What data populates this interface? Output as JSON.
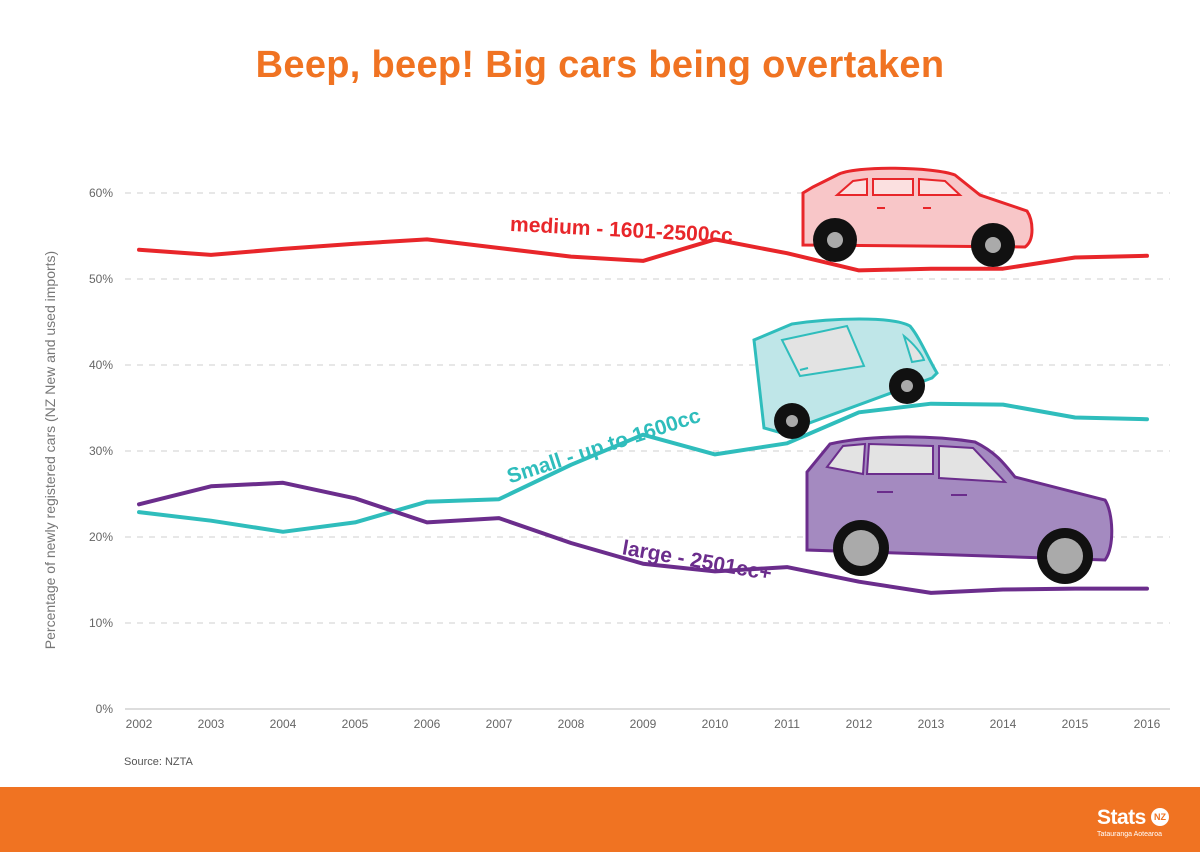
{
  "chart_data": {
    "type": "line",
    "title": "Beep, beep! Big cars being overtaken",
    "xlabel": "",
    "ylabel": "Percentage of newly registered cars (NZ New and used imports)",
    "x": [
      "2002",
      "2003",
      "2004",
      "2005",
      "2006",
      "2007",
      "2008",
      "2009",
      "2010",
      "2011",
      "2012",
      "2013",
      "2014",
      "2015",
      "2016"
    ],
    "ylim": [
      0,
      60
    ],
    "yticks": [
      "0%",
      "10%",
      "20%",
      "30%",
      "40%",
      "50%",
      "60%"
    ],
    "grid": true,
    "series": [
      {
        "name": "medium - 1601-2500cc",
        "color": "#e8262a",
        "values": [
          53.4,
          52.8,
          53.5,
          54.1,
          54.6,
          53.6,
          52.6,
          52.1,
          54.6,
          53.0,
          51.0,
          51.2,
          51.2,
          52.5,
          52.7
        ]
      },
      {
        "name": "Small - up to 1600cc",
        "color": "#2fbdbc",
        "values": [
          22.9,
          21.9,
          20.6,
          21.7,
          24.1,
          24.4,
          28.4,
          31.9,
          29.6,
          30.9,
          34.5,
          35.5,
          35.4,
          33.9,
          33.7
        ]
      },
      {
        "name": "large - 2501cc+",
        "color": "#6b2d8c",
        "values": [
          23.8,
          25.9,
          26.3,
          24.5,
          21.7,
          22.2,
          19.3,
          16.9,
          16.0,
          16.5,
          14.8,
          13.5,
          13.9,
          14.0,
          14.0
        ]
      }
    ]
  },
  "source": "Source: NZTA",
  "logo": {
    "main": "Stats",
    "badge": "NZ",
    "sub": "Tatauranga Aotearoa"
  },
  "colors": {
    "accent": "#f07322",
    "medium": "#e8262a",
    "small": "#2fbdbc",
    "large": "#6b2d8c"
  }
}
